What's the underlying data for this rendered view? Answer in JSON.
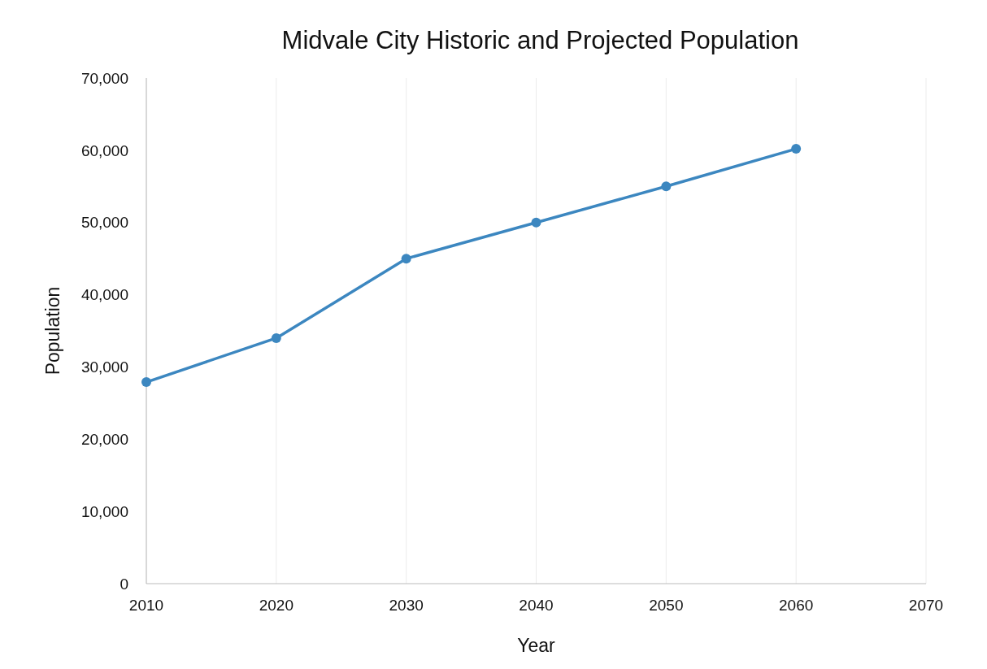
{
  "chart_data": {
    "type": "line",
    "title": "Midvale City Historic and Projected Population",
    "xlabel": "Year",
    "ylabel": "Population",
    "x": [
      2010,
      2020,
      2030,
      2040,
      2050,
      2060
    ],
    "series": [
      {
        "color": "#3c87c0",
        "values": [
          27900,
          34000,
          45000,
          50000,
          55000,
          60200
        ]
      }
    ],
    "xlim": [
      2010,
      2070
    ],
    "xticks": [
      2010,
      2020,
      2030,
      2040,
      2050,
      2060,
      2070
    ],
    "ylim": [
      0,
      70000
    ],
    "yticks": [
      {
        "value": 0,
        "label": "0"
      },
      {
        "value": 10000,
        "label": "10,000"
      },
      {
        "value": 20000,
        "label": "20,000"
      },
      {
        "value": 30000,
        "label": "30,000"
      },
      {
        "value": 40000,
        "label": "40,000"
      },
      {
        "value": 50000,
        "label": "50,000"
      },
      {
        "value": 60000,
        "label": "60,000"
      },
      {
        "value": 70000,
        "label": "70,000"
      }
    ],
    "grid": "x",
    "marker": "circle",
    "line_style": "solid"
  }
}
